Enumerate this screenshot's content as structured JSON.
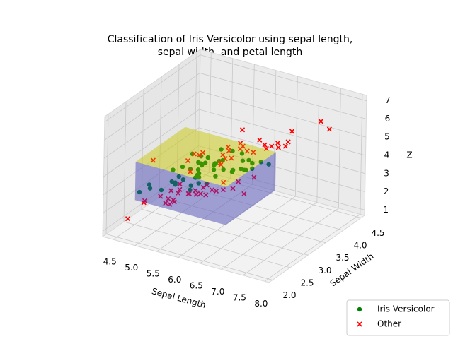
{
  "chart_data": {
    "type": "scatter3d",
    "title": "Classification of Iris Versicolor using sepal length,\nsepal width, and petal length",
    "xlabel": "Sepal Length",
    "ylabel": "Sepal Width",
    "zlabel": "Z",
    "xlim": [
      4.25,
      8.1
    ],
    "ylim": [
      1.9,
      4.6
    ],
    "zlim": [
      0.7,
      7.3
    ],
    "xticks": [
      {
        "value": 4.5,
        "label": "4.5"
      },
      {
        "value": 5,
        "label": "5.0"
      },
      {
        "value": 5.5,
        "label": "5.5"
      },
      {
        "value": 6,
        "label": "6.0"
      },
      {
        "value": 6.5,
        "label": "6.5"
      },
      {
        "value": 7,
        "label": "7.0"
      },
      {
        "value": 7.5,
        "label": "7.5"
      },
      {
        "value": 8,
        "label": "8.0"
      }
    ],
    "yticks": [
      {
        "value": 2,
        "label": "2.0"
      },
      {
        "value": 2.5,
        "label": "2.5"
      },
      {
        "value": 3,
        "label": "3.0"
      },
      {
        "value": 3.5,
        "label": "3.5"
      },
      {
        "value": 4,
        "label": "4.0"
      },
      {
        "value": 4.5,
        "label": "4.5"
      }
    ],
    "zticks": [
      1,
      2,
      3,
      4,
      5,
      6,
      7
    ],
    "grid": true,
    "legend": "lower right",
    "region": {
      "x": [
        4.9,
        7.0
      ],
      "y": [
        2.0,
        3.4
      ],
      "z": [
        3.0,
        5.1
      ],
      "color": "#c8c800",
      "side_color": "#3333ff"
    },
    "series": [
      {
        "name": "Iris Versicolor",
        "color": "#008000",
        "marker": "o",
        "x": [
          7.0,
          6.4,
          6.9,
          5.5,
          6.5,
          5.7,
          6.3,
          4.9,
          6.6,
          5.2,
          5.0,
          5.9,
          6.0,
          6.1,
          5.6,
          6.7,
          5.6,
          5.8,
          6.2,
          5.6,
          5.9,
          6.1,
          6.3,
          6.1,
          6.4,
          6.6,
          6.8,
          6.7,
          6.0,
          5.7,
          5.5,
          5.5,
          5.8,
          6.0,
          5.4,
          6.0,
          6.7,
          6.3,
          5.6,
          5.5,
          5.5,
          6.1,
          5.8,
          5.0,
          5.6,
          5.7,
          5.7,
          6.2,
          5.1,
          5.7
        ],
        "y": [
          3.2,
          3.2,
          3.1,
          2.3,
          2.8,
          2.8,
          3.3,
          2.4,
          2.9,
          2.7,
          2.0,
          3.0,
          2.2,
          2.9,
          2.9,
          3.1,
          3.0,
          2.7,
          2.2,
          2.5,
          3.2,
          2.8,
          2.5,
          2.8,
          2.9,
          3.0,
          2.8,
          3.0,
          2.9,
          2.6,
          2.4,
          2.4,
          2.7,
          2.7,
          3.0,
          3.4,
          3.1,
          2.3,
          3.0,
          2.5,
          2.6,
          3.0,
          2.6,
          2.3,
          2.7,
          3.0,
          2.9,
          2.9,
          2.5,
          2.8
        ],
        "z": [
          4.7,
          4.5,
          4.9,
          4.0,
          4.6,
          4.5,
          4.7,
          3.3,
          4.6,
          3.9,
          3.5,
          4.2,
          4.0,
          4.7,
          3.6,
          4.4,
          4.5,
          4.1,
          4.5,
          3.9,
          4.8,
          4.0,
          4.9,
          4.7,
          4.3,
          4.4,
          4.8,
          5.0,
          4.5,
          3.5,
          3.8,
          3.7,
          3.9,
          5.1,
          4.5,
          4.5,
          4.7,
          4.4,
          4.1,
          4.0,
          4.4,
          4.6,
          4.0,
          3.3,
          4.2,
          4.2,
          4.2,
          4.3,
          3.0,
          4.1
        ]
      },
      {
        "name": "Other",
        "color": "#ff0000",
        "marker": "x",
        "x": [
          5.1,
          4.9,
          4.7,
          4.6,
          5.0,
          5.4,
          4.6,
          5.0,
          4.4,
          4.9,
          5.4,
          4.8,
          4.8,
          4.3,
          5.8,
          5.7,
          5.4,
          5.1,
          5.7,
          5.1,
          5.4,
          5.1,
          4.6,
          5.1,
          4.8,
          5.0,
          5.2,
          4.5,
          5.5,
          5.3,
          6.3,
          5.8,
          7.1,
          6.3,
          6.5,
          7.6,
          4.9,
          7.3,
          6.7,
          7.2,
          6.5,
          6.4,
          6.8,
          5.7,
          5.8,
          6.4,
          6.5,
          7.7,
          7.7,
          6.0,
          6.9,
          5.6,
          7.7,
          6.3,
          6.7,
          7.2,
          6.2,
          6.1,
          7.9,
          6.4
        ],
        "y": [
          3.5,
          3.0,
          3.2,
          3.1,
          3.6,
          3.9,
          3.4,
          3.4,
          2.9,
          3.1,
          3.7,
          3.4,
          3.0,
          3.0,
          4.0,
          4.4,
          3.9,
          3.5,
          3.8,
          3.8,
          3.4,
          3.7,
          3.6,
          3.3,
          3.4,
          3.0,
          3.5,
          2.3,
          4.2,
          3.7,
          3.3,
          2.7,
          3.0,
          2.9,
          3.0,
          3.0,
          2.5,
          2.9,
          2.5,
          3.6,
          3.2,
          2.7,
          3.0,
          2.5,
          2.8,
          3.2,
          3.0,
          3.8,
          2.6,
          2.2,
          3.2,
          2.8,
          2.8,
          2.7,
          3.3,
          3.2,
          2.8,
          3.0,
          3.8,
          2.8
        ],
        "z": [
          1.4,
          1.4,
          1.3,
          1.5,
          1.4,
          1.7,
          1.4,
          1.5,
          1.4,
          1.5,
          1.5,
          1.6,
          1.4,
          1.1,
          1.2,
          1.5,
          1.3,
          1.4,
          1.7,
          1.5,
          1.7,
          1.5,
          1.0,
          1.7,
          1.9,
          1.6,
          1.5,
          1.3,
          1.4,
          1.5,
          6.0,
          5.1,
          5.9,
          5.6,
          5.8,
          6.6,
          4.5,
          6.3,
          5.8,
          6.1,
          5.1,
          5.3,
          5.5,
          5.0,
          5.1,
          5.3,
          5.5,
          6.7,
          6.9,
          5.0,
          5.7,
          4.9,
          6.7,
          4.9,
          5.7,
          6.0,
          4.8,
          4.9,
          6.4,
          5.6
        ]
      }
    ]
  }
}
